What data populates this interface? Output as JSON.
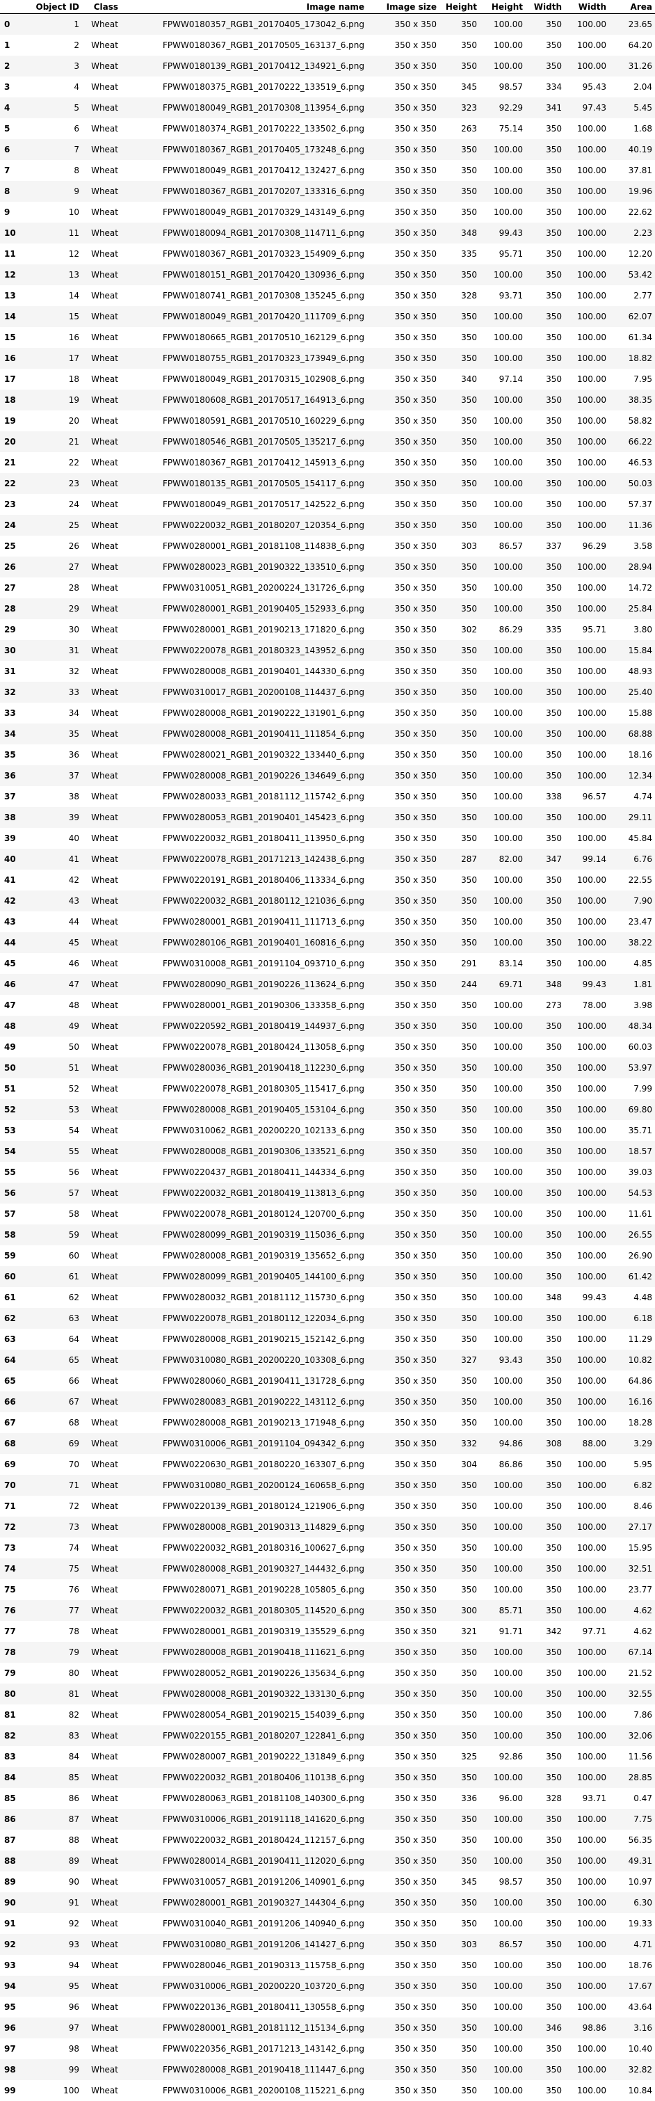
{
  "columns": [
    "",
    "Object ID",
    "Class",
    "Image name",
    "Image size",
    "Height",
    "Height",
    "Width",
    "Width",
    "Area"
  ],
  "rows": [
    [
      "0",
      "1",
      "Wheat",
      "FPWW0180357_RGB1_20170405_173042_6.png",
      "350 x 350",
      "350",
      "100.00",
      "350",
      "100.00",
      "23.65"
    ],
    [
      "1",
      "2",
      "Wheat",
      "FPWW0180367_RGB1_20170505_163137_6.png",
      "350 x 350",
      "350",
      "100.00",
      "350",
      "100.00",
      "64.20"
    ],
    [
      "2",
      "3",
      "Wheat",
      "FPWW0180139_RGB1_20170412_134921_6.png",
      "350 x 350",
      "350",
      "100.00",
      "350",
      "100.00",
      "31.26"
    ],
    [
      "3",
      "4",
      "Wheat",
      "FPWW0180375_RGB1_20170222_133519_6.png",
      "350 x 350",
      "345",
      "98.57",
      "334",
      "95.43",
      "2.04"
    ],
    [
      "4",
      "5",
      "Wheat",
      "FPWW0180049_RGB1_20170308_113954_6.png",
      "350 x 350",
      "323",
      "92.29",
      "341",
      "97.43",
      "5.45"
    ],
    [
      "5",
      "6",
      "Wheat",
      "FPWW0180374_RGB1_20170222_133502_6.png",
      "350 x 350",
      "263",
      "75.14",
      "350",
      "100.00",
      "1.68"
    ],
    [
      "6",
      "7",
      "Wheat",
      "FPWW0180367_RGB1_20170405_173248_6.png",
      "350 x 350",
      "350",
      "100.00",
      "350",
      "100.00",
      "40.19"
    ],
    [
      "7",
      "8",
      "Wheat",
      "FPWW0180049_RGB1_20170412_132427_6.png",
      "350 x 350",
      "350",
      "100.00",
      "350",
      "100.00",
      "37.81"
    ],
    [
      "8",
      "9",
      "Wheat",
      "FPWW0180367_RGB1_20170207_133316_6.png",
      "350 x 350",
      "350",
      "100.00",
      "350",
      "100.00",
      "19.96"
    ],
    [
      "9",
      "10",
      "Wheat",
      "FPWW0180049_RGB1_20170329_143149_6.png",
      "350 x 350",
      "350",
      "100.00",
      "350",
      "100.00",
      "22.62"
    ],
    [
      "10",
      "11",
      "Wheat",
      "FPWW0180094_RGB1_20170308_114711_6.png",
      "350 x 350",
      "348",
      "99.43",
      "350",
      "100.00",
      "2.23"
    ],
    [
      "11",
      "12",
      "Wheat",
      "FPWW0180367_RGB1_20170323_154909_6.png",
      "350 x 350",
      "335",
      "95.71",
      "350",
      "100.00",
      "12.20"
    ],
    [
      "12",
      "13",
      "Wheat",
      "FPWW0180151_RGB1_20170420_130936_6.png",
      "350 x 350",
      "350",
      "100.00",
      "350",
      "100.00",
      "53.42"
    ],
    [
      "13",
      "14",
      "Wheat",
      "FPWW0180741_RGB1_20170308_135245_6.png",
      "350 x 350",
      "328",
      "93.71",
      "350",
      "100.00",
      "2.77"
    ],
    [
      "14",
      "15",
      "Wheat",
      "FPWW0180049_RGB1_20170420_111709_6.png",
      "350 x 350",
      "350",
      "100.00",
      "350",
      "100.00",
      "62.07"
    ],
    [
      "15",
      "16",
      "Wheat",
      "FPWW0180665_RGB1_20170510_162129_6.png",
      "350 x 350",
      "350",
      "100.00",
      "350",
      "100.00",
      "61.34"
    ],
    [
      "16",
      "17",
      "Wheat",
      "FPWW0180755_RGB1_20170323_173949_6.png",
      "350 x 350",
      "350",
      "100.00",
      "350",
      "100.00",
      "18.82"
    ],
    [
      "17",
      "18",
      "Wheat",
      "FPWW0180049_RGB1_20170315_102908_6.png",
      "350 x 350",
      "340",
      "97.14",
      "350",
      "100.00",
      "7.95"
    ],
    [
      "18",
      "19",
      "Wheat",
      "FPWW0180608_RGB1_20170517_164913_6.png",
      "350 x 350",
      "350",
      "100.00",
      "350",
      "100.00",
      "38.35"
    ],
    [
      "19",
      "20",
      "Wheat",
      "FPWW0180591_RGB1_20170510_160229_6.png",
      "350 x 350",
      "350",
      "100.00",
      "350",
      "100.00",
      "58.82"
    ],
    [
      "20",
      "21",
      "Wheat",
      "FPWW0180546_RGB1_20170505_135217_6.png",
      "350 x 350",
      "350",
      "100.00",
      "350",
      "100.00",
      "66.22"
    ],
    [
      "21",
      "22",
      "Wheat",
      "FPWW0180367_RGB1_20170412_145913_6.png",
      "350 x 350",
      "350",
      "100.00",
      "350",
      "100.00",
      "46.53"
    ],
    [
      "22",
      "23",
      "Wheat",
      "FPWW0180135_RGB1_20170505_154117_6.png",
      "350 x 350",
      "350",
      "100.00",
      "350",
      "100.00",
      "50.03"
    ],
    [
      "23",
      "24",
      "Wheat",
      "FPWW0180049_RGB1_20170517_142522_6.png",
      "350 x 350",
      "350",
      "100.00",
      "350",
      "100.00",
      "57.37"
    ],
    [
      "24",
      "25",
      "Wheat",
      "FPWW0220032_RGB1_20180207_120354_6.png",
      "350 x 350",
      "350",
      "100.00",
      "350",
      "100.00",
      "11.36"
    ],
    [
      "25",
      "26",
      "Wheat",
      "FPWW0280001_RGB1_20181108_114838_6.png",
      "350 x 350",
      "303",
      "86.57",
      "337",
      "96.29",
      "3.58"
    ],
    [
      "26",
      "27",
      "Wheat",
      "FPWW0280023_RGB1_20190322_133510_6.png",
      "350 x 350",
      "350",
      "100.00",
      "350",
      "100.00",
      "28.94"
    ],
    [
      "27",
      "28",
      "Wheat",
      "FPWW0310051_RGB1_20200224_131726_6.png",
      "350 x 350",
      "350",
      "100.00",
      "350",
      "100.00",
      "14.72"
    ],
    [
      "28",
      "29",
      "Wheat",
      "FPWW0280001_RGB1_20190405_152933_6.png",
      "350 x 350",
      "350",
      "100.00",
      "350",
      "100.00",
      "25.84"
    ],
    [
      "29",
      "30",
      "Wheat",
      "FPWW0280001_RGB1_20190213_171820_6.png",
      "350 x 350",
      "302",
      "86.29",
      "335",
      "95.71",
      "3.80"
    ],
    [
      "30",
      "31",
      "Wheat",
      "FPWW0220078_RGB1_20180323_143952_6.png",
      "350 x 350",
      "350",
      "100.00",
      "350",
      "100.00",
      "15.84"
    ],
    [
      "31",
      "32",
      "Wheat",
      "FPWW0280008_RGB1_20190401_144330_6.png",
      "350 x 350",
      "350",
      "100.00",
      "350",
      "100.00",
      "48.93"
    ],
    [
      "32",
      "33",
      "Wheat",
      "FPWW0310017_RGB1_20200108_114437_6.png",
      "350 x 350",
      "350",
      "100.00",
      "350",
      "100.00",
      "25.40"
    ],
    [
      "33",
      "34",
      "Wheat",
      "FPWW0280008_RGB1_20190222_131901_6.png",
      "350 x 350",
      "350",
      "100.00",
      "350",
      "100.00",
      "15.88"
    ],
    [
      "34",
      "35",
      "Wheat",
      "FPWW0280008_RGB1_20190411_111854_6.png",
      "350 x 350",
      "350",
      "100.00",
      "350",
      "100.00",
      "68.88"
    ],
    [
      "35",
      "36",
      "Wheat",
      "FPWW0280021_RGB1_20190322_133440_6.png",
      "350 x 350",
      "350",
      "100.00",
      "350",
      "100.00",
      "18.16"
    ],
    [
      "36",
      "37",
      "Wheat",
      "FPWW0280008_RGB1_20190226_134649_6.png",
      "350 x 350",
      "350",
      "100.00",
      "350",
      "100.00",
      "12.34"
    ],
    [
      "37",
      "38",
      "Wheat",
      "FPWW0280033_RGB1_20181112_115742_6.png",
      "350 x 350",
      "350",
      "100.00",
      "338",
      "96.57",
      "4.74"
    ],
    [
      "38",
      "39",
      "Wheat",
      "FPWW0280053_RGB1_20190401_145423_6.png",
      "350 x 350",
      "350",
      "100.00",
      "350",
      "100.00",
      "29.11"
    ],
    [
      "39",
      "40",
      "Wheat",
      "FPWW0220032_RGB1_20180411_113950_6.png",
      "350 x 350",
      "350",
      "100.00",
      "350",
      "100.00",
      "45.84"
    ],
    [
      "40",
      "41",
      "Wheat",
      "FPWW0220078_RGB1_20171213_142438_6.png",
      "350 x 350",
      "287",
      "82.00",
      "347",
      "99.14",
      "6.76"
    ],
    [
      "41",
      "42",
      "Wheat",
      "FPWW0220191_RGB1_20180406_113334_6.png",
      "350 x 350",
      "350",
      "100.00",
      "350",
      "100.00",
      "22.55"
    ],
    [
      "42",
      "43",
      "Wheat",
      "FPWW0220032_RGB1_20180112_121036_6.png",
      "350 x 350",
      "350",
      "100.00",
      "350",
      "100.00",
      "7.90"
    ],
    [
      "43",
      "44",
      "Wheat",
      "FPWW0280001_RGB1_20190411_111713_6.png",
      "350 x 350",
      "350",
      "100.00",
      "350",
      "100.00",
      "23.47"
    ],
    [
      "44",
      "45",
      "Wheat",
      "FPWW0280106_RGB1_20190401_160816_6.png",
      "350 x 350",
      "350",
      "100.00",
      "350",
      "100.00",
      "38.22"
    ],
    [
      "45",
      "46",
      "Wheat",
      "FPWW0310008_RGB1_20191104_093710_6.png",
      "350 x 350",
      "291",
      "83.14",
      "350",
      "100.00",
      "4.85"
    ],
    [
      "46",
      "47",
      "Wheat",
      "FPWW0280090_RGB1_20190226_113624_6.png",
      "350 x 350",
      "244",
      "69.71",
      "348",
      "99.43",
      "1.81"
    ],
    [
      "47",
      "48",
      "Wheat",
      "FPWW0280001_RGB1_20190306_133358_6.png",
      "350 x 350",
      "350",
      "100.00",
      "273",
      "78.00",
      "3.98"
    ],
    [
      "48",
      "49",
      "Wheat",
      "FPWW0220592_RGB1_20180419_144937_6.png",
      "350 x 350",
      "350",
      "100.00",
      "350",
      "100.00",
      "48.34"
    ],
    [
      "49",
      "50",
      "Wheat",
      "FPWW0220078_RGB1_20180424_113058_6.png",
      "350 x 350",
      "350",
      "100.00",
      "350",
      "100.00",
      "60.03"
    ],
    [
      "50",
      "51",
      "Wheat",
      "FPWW0280036_RGB1_20190418_112230_6.png",
      "350 x 350",
      "350",
      "100.00",
      "350",
      "100.00",
      "53.97"
    ],
    [
      "51",
      "52",
      "Wheat",
      "FPWW0220078_RGB1_20180305_115417_6.png",
      "350 x 350",
      "350",
      "100.00",
      "350",
      "100.00",
      "7.99"
    ],
    [
      "52",
      "53",
      "Wheat",
      "FPWW0280008_RGB1_20190405_153104_6.png",
      "350 x 350",
      "350",
      "100.00",
      "350",
      "100.00",
      "69.80"
    ],
    [
      "53",
      "54",
      "Wheat",
      "FPWW0310062_RGB1_20200220_102133_6.png",
      "350 x 350",
      "350",
      "100.00",
      "350",
      "100.00",
      "35.71"
    ],
    [
      "54",
      "55",
      "Wheat",
      "FPWW0280008_RGB1_20190306_133521_6.png",
      "350 x 350",
      "350",
      "100.00",
      "350",
      "100.00",
      "18.57"
    ],
    [
      "55",
      "56",
      "Wheat",
      "FPWW0220437_RGB1_20180411_144334_6.png",
      "350 x 350",
      "350",
      "100.00",
      "350",
      "100.00",
      "39.03"
    ],
    [
      "56",
      "57",
      "Wheat",
      "FPWW0220032_RGB1_20180419_113813_6.png",
      "350 x 350",
      "350",
      "100.00",
      "350",
      "100.00",
      "54.53"
    ],
    [
      "57",
      "58",
      "Wheat",
      "FPWW0220078_RGB1_20180124_120700_6.png",
      "350 x 350",
      "350",
      "100.00",
      "350",
      "100.00",
      "11.61"
    ],
    [
      "58",
      "59",
      "Wheat",
      "FPWW0280099_RGB1_20190319_115036_6.png",
      "350 x 350",
      "350",
      "100.00",
      "350",
      "100.00",
      "26.55"
    ],
    [
      "59",
      "60",
      "Wheat",
      "FPWW0280008_RGB1_20190319_135652_6.png",
      "350 x 350",
      "350",
      "100.00",
      "350",
      "100.00",
      "26.90"
    ],
    [
      "60",
      "61",
      "Wheat",
      "FPWW0280099_RGB1_20190405_144100_6.png",
      "350 x 350",
      "350",
      "100.00",
      "350",
      "100.00",
      "61.42"
    ],
    [
      "61",
      "62",
      "Wheat",
      "FPWW0280032_RGB1_20181112_115730_6.png",
      "350 x 350",
      "350",
      "100.00",
      "348",
      "99.43",
      "4.48"
    ],
    [
      "62",
      "63",
      "Wheat",
      "FPWW0220078_RGB1_20180112_122034_6.png",
      "350 x 350",
      "350",
      "100.00",
      "350",
      "100.00",
      "6.18"
    ],
    [
      "63",
      "64",
      "Wheat",
      "FPWW0280008_RGB1_20190215_152142_6.png",
      "350 x 350",
      "350",
      "100.00",
      "350",
      "100.00",
      "11.29"
    ],
    [
      "64",
      "65",
      "Wheat",
      "FPWW0310080_RGB1_20200220_103308_6.png",
      "350 x 350",
      "327",
      "93.43",
      "350",
      "100.00",
      "10.82"
    ],
    [
      "65",
      "66",
      "Wheat",
      "FPWW0280060_RGB1_20190411_131728_6.png",
      "350 x 350",
      "350",
      "100.00",
      "350",
      "100.00",
      "64.86"
    ],
    [
      "66",
      "67",
      "Wheat",
      "FPWW0280083_RGB1_20190222_143112_6.png",
      "350 x 350",
      "350",
      "100.00",
      "350",
      "100.00",
      "16.16"
    ],
    [
      "67",
      "68",
      "Wheat",
      "FPWW0280008_RGB1_20190213_171948_6.png",
      "350 x 350",
      "350",
      "100.00",
      "350",
      "100.00",
      "18.28"
    ],
    [
      "68",
      "69",
      "Wheat",
      "FPWW0310006_RGB1_20191104_094342_6.png",
      "350 x 350",
      "332",
      "94.86",
      "308",
      "88.00",
      "3.29"
    ],
    [
      "69",
      "70",
      "Wheat",
      "FPWW0220630_RGB1_20180220_163307_6.png",
      "350 x 350",
      "304",
      "86.86",
      "350",
      "100.00",
      "5.95"
    ],
    [
      "70",
      "71",
      "Wheat",
      "FPWW0310080_RGB1_20200124_160658_6.png",
      "350 x 350",
      "350",
      "100.00",
      "350",
      "100.00",
      "6.82"
    ],
    [
      "71",
      "72",
      "Wheat",
      "FPWW0220139_RGB1_20180124_121906_6.png",
      "350 x 350",
      "350",
      "100.00",
      "350",
      "100.00",
      "8.46"
    ],
    [
      "72",
      "73",
      "Wheat",
      "FPWW0280008_RGB1_20190313_114829_6.png",
      "350 x 350",
      "350",
      "100.00",
      "350",
      "100.00",
      "27.17"
    ],
    [
      "73",
      "74",
      "Wheat",
      "FPWW0220032_RGB1_20180316_100627_6.png",
      "350 x 350",
      "350",
      "100.00",
      "350",
      "100.00",
      "15.95"
    ],
    [
      "74",
      "75",
      "Wheat",
      "FPWW0280008_RGB1_20190327_144432_6.png",
      "350 x 350",
      "350",
      "100.00",
      "350",
      "100.00",
      "32.51"
    ],
    [
      "75",
      "76",
      "Wheat",
      "FPWW0280071_RGB1_20190228_105805_6.png",
      "350 x 350",
      "350",
      "100.00",
      "350",
      "100.00",
      "23.77"
    ],
    [
      "76",
      "77",
      "Wheat",
      "FPWW0220032_RGB1_20180305_114520_6.png",
      "350 x 350",
      "300",
      "85.71",
      "350",
      "100.00",
      "4.62"
    ],
    [
      "77",
      "78",
      "Wheat",
      "FPWW0280001_RGB1_20190319_135529_6.png",
      "350 x 350",
      "321",
      "91.71",
      "342",
      "97.71",
      "4.62"
    ],
    [
      "78",
      "79",
      "Wheat",
      "FPWW0280008_RGB1_20190418_111621_6.png",
      "350 x 350",
      "350",
      "100.00",
      "350",
      "100.00",
      "67.14"
    ],
    [
      "79",
      "80",
      "Wheat",
      "FPWW0280052_RGB1_20190226_135634_6.png",
      "350 x 350",
      "350",
      "100.00",
      "350",
      "100.00",
      "21.52"
    ],
    [
      "80",
      "81",
      "Wheat",
      "FPWW0280008_RGB1_20190322_133130_6.png",
      "350 x 350",
      "350",
      "100.00",
      "350",
      "100.00",
      "32.55"
    ],
    [
      "81",
      "82",
      "Wheat",
      "FPWW0280054_RGB1_20190215_154039_6.png",
      "350 x 350",
      "350",
      "100.00",
      "350",
      "100.00",
      "7.86"
    ],
    [
      "82",
      "83",
      "Wheat",
      "FPWW0220155_RGB1_20180207_122841_6.png",
      "350 x 350",
      "350",
      "100.00",
      "350",
      "100.00",
      "32.06"
    ],
    [
      "83",
      "84",
      "Wheat",
      "FPWW0280007_RGB1_20190222_131849_6.png",
      "350 x 350",
      "325",
      "92.86",
      "350",
      "100.00",
      "11.56"
    ],
    [
      "84",
      "85",
      "Wheat",
      "FPWW0220032_RGB1_20180406_110138_6.png",
      "350 x 350",
      "350",
      "100.00",
      "350",
      "100.00",
      "28.85"
    ],
    [
      "85",
      "86",
      "Wheat",
      "FPWW0280063_RGB1_20181108_140300_6.png",
      "350 x 350",
      "336",
      "96.00",
      "328",
      "93.71",
      "0.47"
    ],
    [
      "86",
      "87",
      "Wheat",
      "FPWW0310006_RGB1_20191118_141620_6.png",
      "350 x 350",
      "350",
      "100.00",
      "350",
      "100.00",
      "7.75"
    ],
    [
      "87",
      "88",
      "Wheat",
      "FPWW0220032_RGB1_20180424_112157_6.png",
      "350 x 350",
      "350",
      "100.00",
      "350",
      "100.00",
      "56.35"
    ],
    [
      "88",
      "89",
      "Wheat",
      "FPWW0280014_RGB1_20190411_112020_6.png",
      "350 x 350",
      "350",
      "100.00",
      "350",
      "100.00",
      "49.31"
    ],
    [
      "89",
      "90",
      "Wheat",
      "FPWW0310057_RGB1_20191206_140901_6.png",
      "350 x 350",
      "345",
      "98.57",
      "350",
      "100.00",
      "10.97"
    ],
    [
      "90",
      "91",
      "Wheat",
      "FPWW0280001_RGB1_20190327_144304_6.png",
      "350 x 350",
      "350",
      "100.00",
      "350",
      "100.00",
      "6.30"
    ],
    [
      "91",
      "92",
      "Wheat",
      "FPWW0310040_RGB1_20191206_140940_6.png",
      "350 x 350",
      "350",
      "100.00",
      "350",
      "100.00",
      "19.33"
    ],
    [
      "92",
      "93",
      "Wheat",
      "FPWW0310080_RGB1_20191206_141427_6.png",
      "350 x 350",
      "303",
      "86.57",
      "350",
      "100.00",
      "4.71"
    ],
    [
      "93",
      "94",
      "Wheat",
      "FPWW0280046_RGB1_20190313_115758_6.png",
      "350 x 350",
      "350",
      "100.00",
      "350",
      "100.00",
      "18.76"
    ],
    [
      "94",
      "95",
      "Wheat",
      "FPWW0310006_RGB1_20200220_103720_6.png",
      "350 x 350",
      "350",
      "100.00",
      "350",
      "100.00",
      "17.67"
    ],
    [
      "95",
      "96",
      "Wheat",
      "FPWW0220136_RGB1_20180411_130558_6.png",
      "350 x 350",
      "350",
      "100.00",
      "350",
      "100.00",
      "43.64"
    ],
    [
      "96",
      "97",
      "Wheat",
      "FPWW0280001_RGB1_20181112_115134_6.png",
      "350 x 350",
      "350",
      "100.00",
      "346",
      "98.86",
      "3.16"
    ],
    [
      "97",
      "98",
      "Wheat",
      "FPWW0220356_RGB1_20171213_143142_6.png",
      "350 x 350",
      "350",
      "100.00",
      "350",
      "100.00",
      "10.40"
    ],
    [
      "98",
      "99",
      "Wheat",
      "FPWW0280008_RGB1_20190418_111447_6.png",
      "350 x 350",
      "350",
      "100.00",
      "350",
      "100.00",
      "32.82"
    ],
    [
      "99",
      "100",
      "Wheat",
      "FPWW0310006_RGB1_20200108_115221_6.png",
      "350 x 350",
      "350",
      "100.00",
      "350",
      "100.00",
      "10.84"
    ]
  ]
}
